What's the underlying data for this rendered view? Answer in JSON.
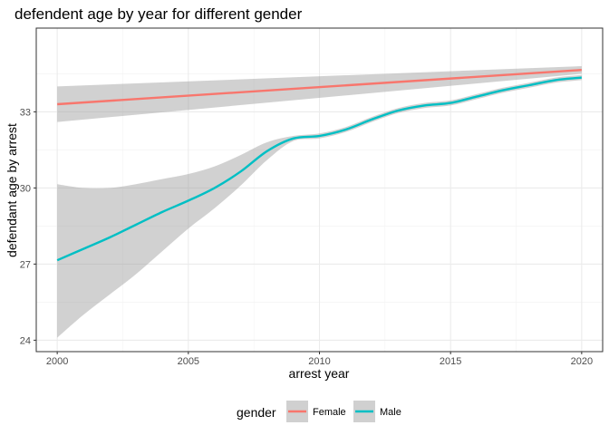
{
  "chart_data": {
    "type": "line",
    "title": "defendent age by year for different gender",
    "xlabel": "arrest year",
    "ylabel": "defendant age by arrest",
    "xlim": [
      1999.2,
      2020.8
    ],
    "ylim": [
      23.55,
      36.3
    ],
    "x_ticks": [
      2000,
      2005,
      2010,
      2015,
      2020
    ],
    "y_ticks": [
      24,
      27,
      30,
      33
    ],
    "grid": true,
    "legend_placement": "bottom",
    "legend_title": "gender",
    "series": [
      {
        "name": "Female",
        "color": "#F8766D",
        "x": [
          2000,
          2020
        ],
        "y": [
          33.3,
          34.65
        ],
        "ci_lower": [
          32.6,
          34.5
        ],
        "ci_upper": [
          34.0,
          34.8
        ]
      },
      {
        "name": "Male",
        "color": "#00BFC4",
        "x": [
          2000,
          2001,
          2002,
          2003,
          2004,
          2005,
          2006,
          2007,
          2008,
          2009,
          2010,
          2011,
          2012,
          2013,
          2014,
          2015,
          2016,
          2017,
          2018,
          2019,
          2020
        ],
        "y": [
          27.15,
          27.6,
          28.05,
          28.55,
          29.05,
          29.5,
          30.0,
          30.65,
          31.45,
          31.95,
          32.05,
          32.3,
          32.7,
          33.05,
          33.25,
          33.35,
          33.6,
          33.85,
          34.05,
          34.25,
          34.35
        ],
        "ci_lower": [
          24.1,
          25.0,
          25.8,
          26.6,
          27.5,
          28.4,
          29.2,
          30.1,
          31.1,
          31.85,
          31.95,
          32.2,
          32.6,
          32.95,
          33.15,
          33.25,
          33.5,
          33.75,
          33.95,
          34.15,
          34.25
        ],
        "ci_upper": [
          30.15,
          30.0,
          30.0,
          30.15,
          30.35,
          30.55,
          30.85,
          31.3,
          31.8,
          32.05,
          32.15,
          32.4,
          32.8,
          33.15,
          33.35,
          33.45,
          33.7,
          33.95,
          34.15,
          34.35,
          34.45
        ]
      }
    ]
  }
}
